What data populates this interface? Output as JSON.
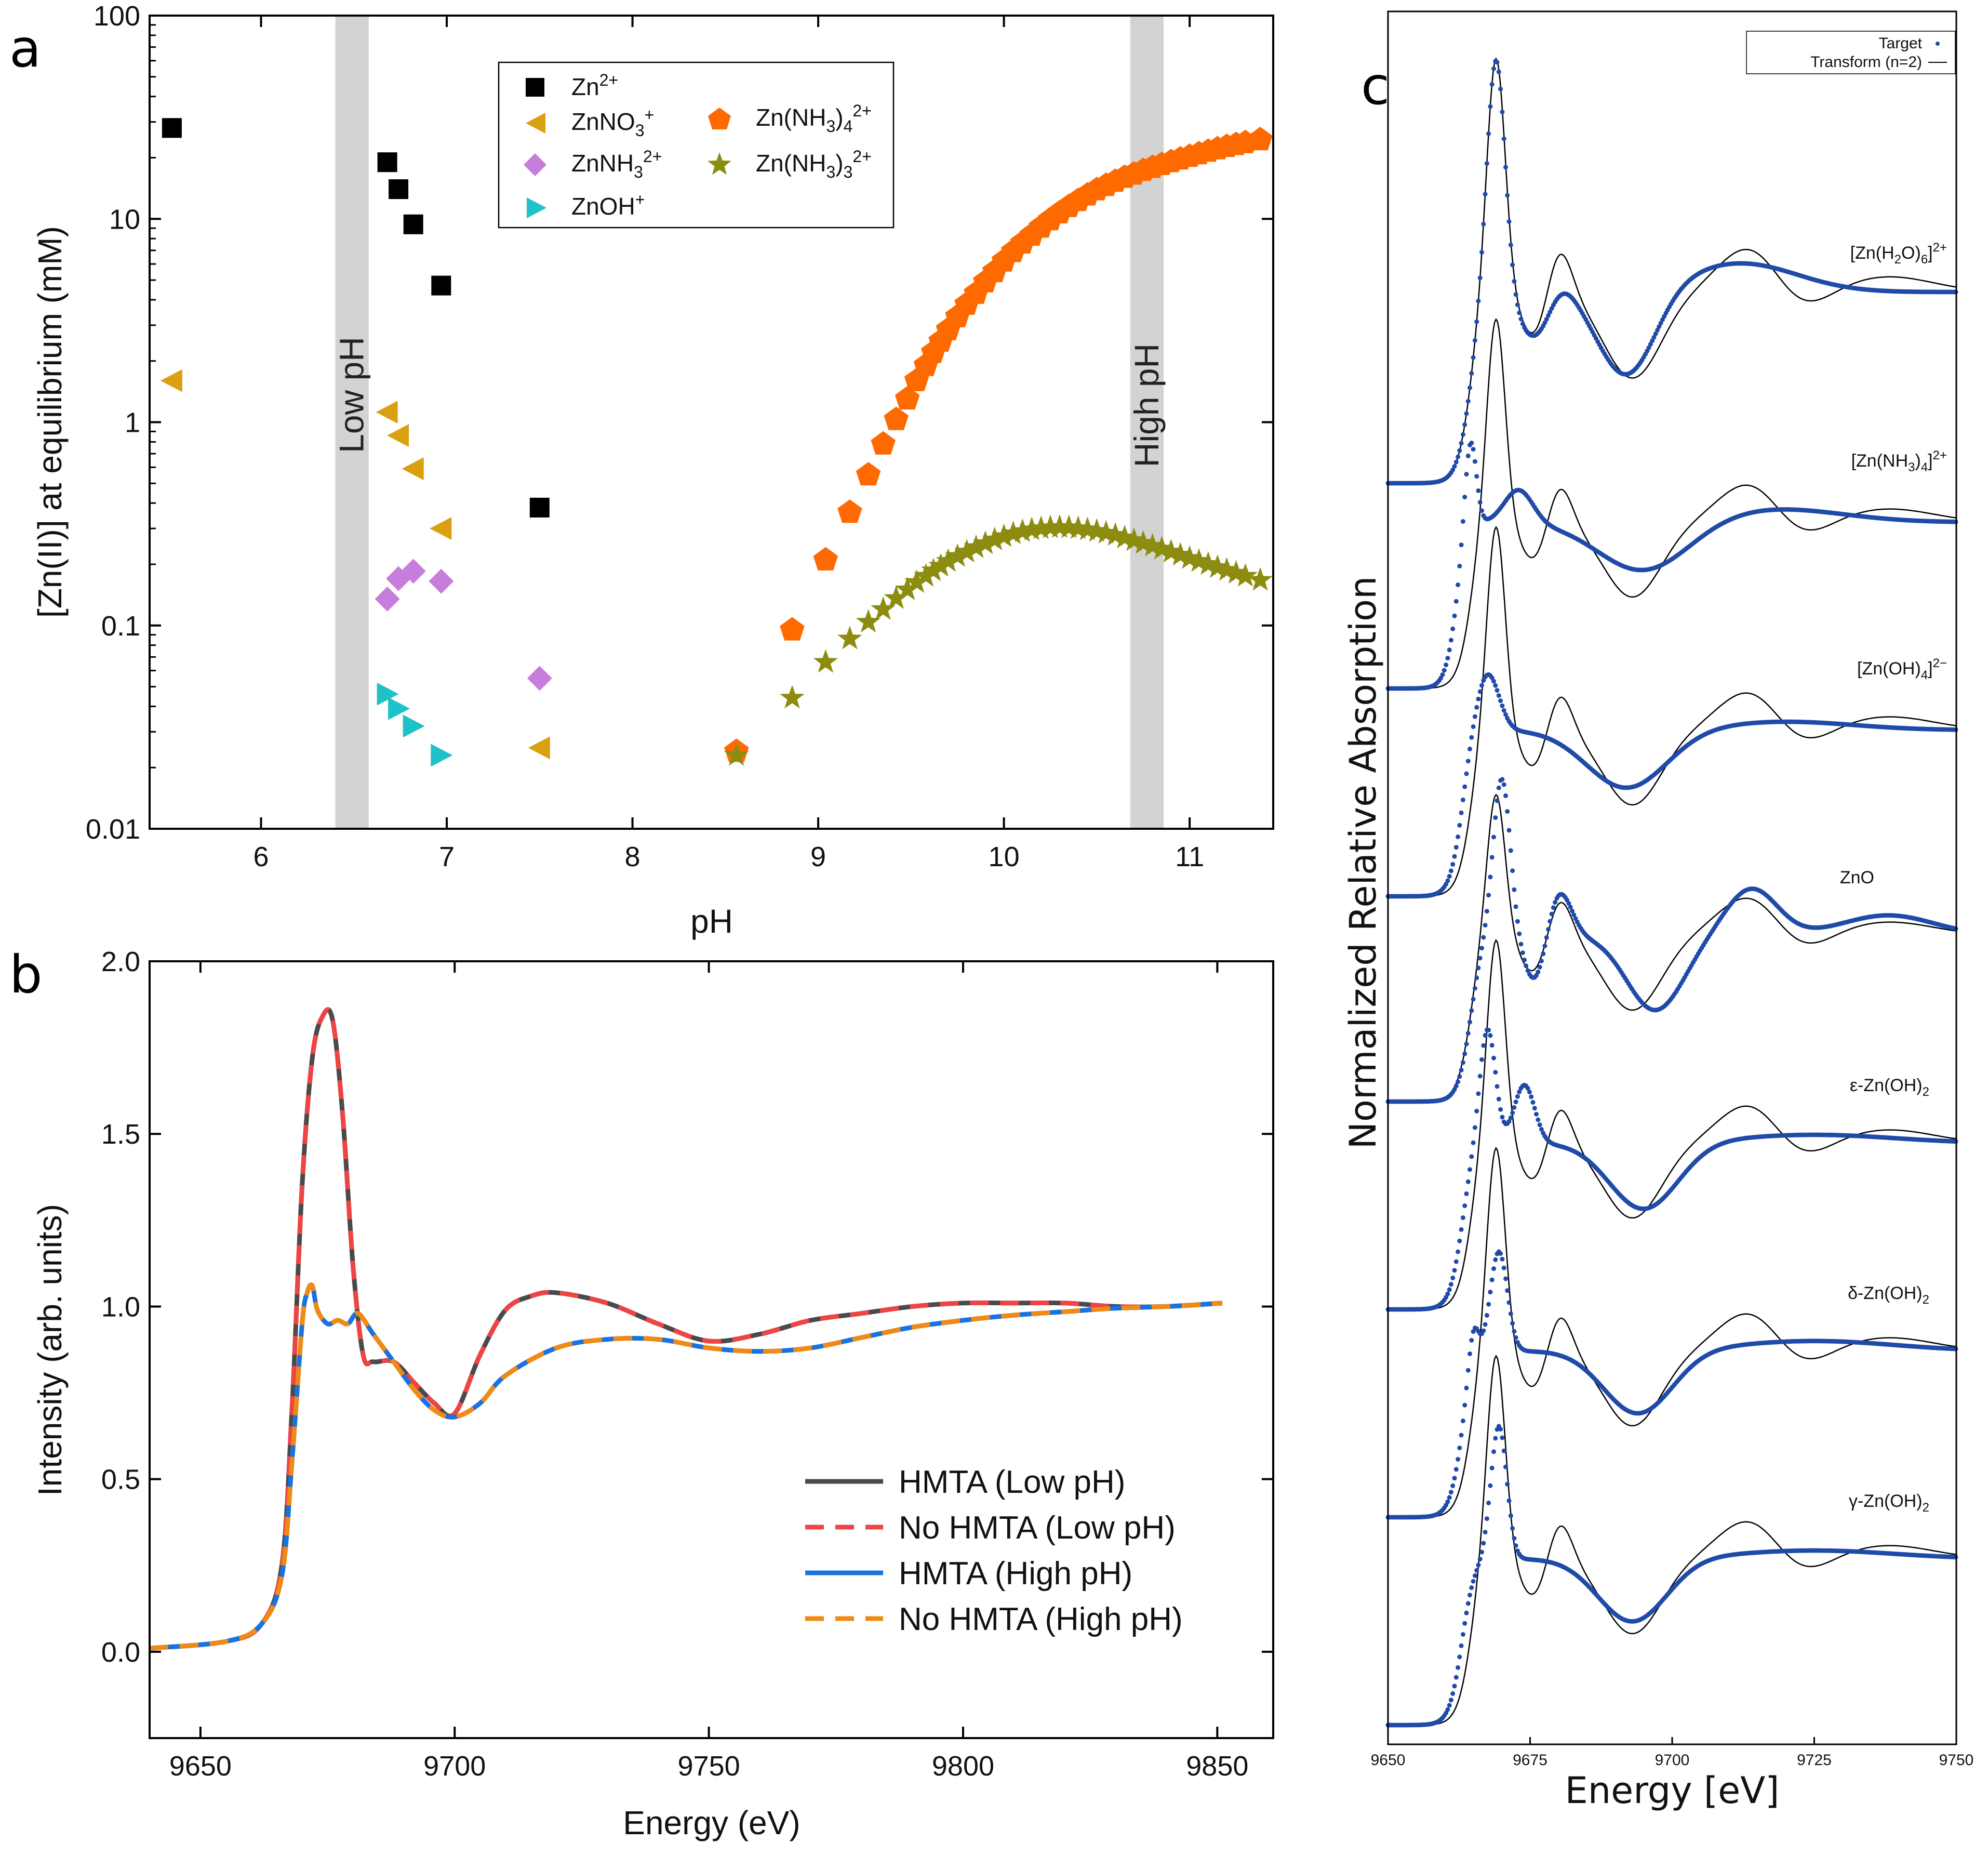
{
  "colors": {
    "zn2": "#000000",
    "znno3": "#d9a00f",
    "znnh3": "#c77ddb",
    "znoh": "#1fc2c9",
    "znnh34": "#ff6a00",
    "znnh33": "#8c8c10",
    "band": "#d3d3d3",
    "hmta_low": "#4a4a4a",
    "nohmta_low": "#ee4444",
    "hmta_high": "#1a72e0",
    "nohmta_high": "#f08a14",
    "target": "#1f4aa8",
    "transform": "#000000"
  },
  "panels": {
    "a": "a",
    "b": "b",
    "c": "c"
  },
  "chart_data": [
    {
      "id": "a",
      "type": "scatter",
      "xlabel": "pH",
      "ylabel": "[Zn(II)] at equilibrium (mM)",
      "xlim": [
        5.4,
        11.45
      ],
      "ylim": [
        0.01,
        100
      ],
      "yscale": "log",
      "xticks": [
        "6",
        "7",
        "8",
        "9",
        "10",
        "11"
      ],
      "yticks": [
        "0.01",
        "0.1",
        "1",
        "10",
        "100"
      ],
      "bands": [
        {
          "label": "Low pH",
          "x0": 6.4,
          "x1": 6.58
        },
        {
          "label": "High pH",
          "x0": 10.68,
          "x1": 10.86
        }
      ],
      "legend": {
        "position": "top-center",
        "col1": [
          "Zn2+",
          "ZnNO3+",
          "ZnNH32+",
          "ZnOH+"
        ],
        "col2": [
          "Zn(NH3)42+",
          "Zn(NH3)32+"
        ]
      },
      "series": [
        {
          "name": "Zn2+",
          "marker": "square",
          "x": [
            5.52,
            6.68,
            6.74,
            6.82,
            6.97,
            7.5
          ],
          "y": [
            28,
            19,
            14,
            9.4,
            4.7,
            0.38
          ]
        },
        {
          "name": "ZnNO3+",
          "marker": "tri-left",
          "x": [
            5.52,
            6.68,
            6.74,
            6.82,
            6.97,
            7.5
          ],
          "y": [
            1.6,
            1.12,
            0.86,
            0.59,
            0.3,
            0.025
          ]
        },
        {
          "name": "ZnNH32+",
          "marker": "diamond",
          "x": [
            6.68,
            6.74,
            6.82,
            6.97,
            7.5
          ],
          "y": [
            0.135,
            0.17,
            0.185,
            0.165,
            0.055
          ]
        },
        {
          "name": "ZnOH+",
          "marker": "tri-right",
          "x": [
            6.68,
            6.74,
            6.82,
            6.97
          ],
          "y": [
            0.046,
            0.039,
            0.032,
            0.023
          ]
        },
        {
          "name": "Zn(NH3)42+",
          "marker": "pentagon",
          "x": [
            8.56,
            8.86,
            9.04,
            9.17,
            9.27,
            9.35,
            9.42,
            9.48,
            9.53,
            9.58,
            9.62,
            9.66,
            9.7,
            9.75,
            9.8,
            9.85,
            9.9,
            9.95,
            10.0,
            10.05,
            10.1,
            10.15,
            10.2,
            10.25,
            10.3,
            10.35,
            10.4,
            10.45,
            10.5,
            10.55,
            10.6,
            10.65,
            10.7,
            10.75,
            10.8,
            10.85,
            10.9,
            10.95,
            11.0,
            11.05,
            11.1,
            11.15,
            11.2,
            11.25,
            11.3,
            11.38
          ],
          "y": [
            0.024,
            0.095,
            0.21,
            0.36,
            0.55,
            0.78,
            1.03,
            1.3,
            1.6,
            1.9,
            2.2,
            2.5,
            2.85,
            3.3,
            3.8,
            4.3,
            4.9,
            5.5,
            6.2,
            6.9,
            7.6,
            8.3,
            9.1,
            9.9,
            10.7,
            11.5,
            12.3,
            13.1,
            13.9,
            14.6,
            15.3,
            16.0,
            16.6,
            17.3,
            17.9,
            18.5,
            19.1,
            19.7,
            20.3,
            20.9,
            21.5,
            22.1,
            22.7,
            23.2,
            23.7,
            24.5
          ]
        },
        {
          "name": "Zn(NH3)32+",
          "marker": "star",
          "x": [
            8.56,
            8.86,
            9.04,
            9.17,
            9.27,
            9.35,
            9.42,
            9.48,
            9.53,
            9.58,
            9.62,
            9.66,
            9.7,
            9.75,
            9.8,
            9.85,
            9.9,
            9.95,
            10.0,
            10.05,
            10.1,
            10.15,
            10.2,
            10.25,
            10.3,
            10.35,
            10.4,
            10.45,
            10.5,
            10.55,
            10.6,
            10.65,
            10.7,
            10.75,
            10.8,
            10.85,
            10.9,
            10.95,
            11.0,
            11.05,
            11.1,
            11.15,
            11.2,
            11.25,
            11.3,
            11.38
          ],
          "y": [
            0.023,
            0.044,
            0.066,
            0.086,
            0.104,
            0.12,
            0.136,
            0.15,
            0.163,
            0.175,
            0.186,
            0.196,
            0.207,
            0.219,
            0.23,
            0.242,
            0.253,
            0.264,
            0.274,
            0.283,
            0.29,
            0.296,
            0.3,
            0.303,
            0.304,
            0.303,
            0.3,
            0.296,
            0.291,
            0.285,
            0.278,
            0.27,
            0.262,
            0.254,
            0.246,
            0.238,
            0.23,
            0.222,
            0.214,
            0.207,
            0.2,
            0.193,
            0.187,
            0.181,
            0.175,
            0.167
          ]
        }
      ]
    },
    {
      "id": "b",
      "type": "line",
      "xlabel": "Energy (eV)",
      "ylabel": "Intensity (arb. units)",
      "xlim": [
        9640,
        9861
      ],
      "ylim": [
        -0.25,
        2.0
      ],
      "xticks": [
        "9650",
        "9700",
        "9750",
        "9800",
        "9850"
      ],
      "yticks": [
        "0.0",
        "0.5",
        "1.0",
        "1.5",
        "2.0"
      ],
      "legend": {
        "position": "bottom-right"
      },
      "series": [
        {
          "name": "HMTA (Low pH)",
          "style": "solid",
          "x": [
            9640,
            9655,
            9662,
            9666,
            9668,
            9670,
            9672,
            9674,
            9676,
            9678,
            9680,
            9682,
            9684,
            9688,
            9692,
            9696,
            9700,
            9705,
            9710,
            9715,
            9720,
            9730,
            9740,
            9750,
            9760,
            9770,
            9780,
            9790,
            9800,
            9810,
            9820,
            9830,
            9840,
            9851
          ],
          "y": [
            0.01,
            0.03,
            0.08,
            0.25,
            0.7,
            1.35,
            1.72,
            1.84,
            1.83,
            1.55,
            1.12,
            0.86,
            0.84,
            0.84,
            0.78,
            0.72,
            0.69,
            0.86,
            0.99,
            1.03,
            1.04,
            1.01,
            0.95,
            0.9,
            0.92,
            0.96,
            0.98,
            1.0,
            1.01,
            1.01,
            1.01,
            1.0,
            1.0,
            1.01
          ]
        },
        {
          "name": "No HMTA (Low pH)",
          "style": "dashed",
          "same_as": "HMTA (Low pH)"
        },
        {
          "name": "HMTA (High pH)",
          "style": "solid",
          "x": [
            9640,
            9655,
            9662,
            9666,
            9668,
            9670,
            9671,
            9672,
            9673,
            9675,
            9677,
            9679,
            9681,
            9684,
            9688,
            9692,
            9696,
            9700,
            9705,
            9710,
            9720,
            9730,
            9740,
            9750,
            9760,
            9770,
            9780,
            9790,
            9800,
            9810,
            9820,
            9830,
            9840,
            9851
          ],
          "y": [
            0.01,
            0.03,
            0.08,
            0.22,
            0.55,
            0.95,
            1.04,
            1.06,
            0.99,
            0.95,
            0.96,
            0.95,
            0.98,
            0.92,
            0.84,
            0.76,
            0.7,
            0.68,
            0.72,
            0.8,
            0.88,
            0.905,
            0.905,
            0.88,
            0.87,
            0.88,
            0.91,
            0.94,
            0.96,
            0.975,
            0.985,
            0.995,
            1.0,
            1.01
          ]
        },
        {
          "name": "No HMTA (High pH)",
          "style": "dashed",
          "same_as": "HMTA (High pH)"
        }
      ]
    },
    {
      "id": "c",
      "type": "line",
      "xlabel": "Energy [eV]",
      "ylabel": "Normalized Relative Absorption",
      "xlim": [
        9650,
        9750
      ],
      "xticks": [
        "9650",
        "9675",
        "9700",
        "9725",
        "9750"
      ],
      "legend": {
        "position": "top-right",
        "entries": [
          "Target",
          "Transform (n=2)"
        ]
      },
      "references": [
        {
          "label": "[Zn(H2O)6]2+"
        },
        {
          "label": "[Zn(NH3)4]2+"
        },
        {
          "label": "[Zn(OH)4]2−"
        },
        {
          "label": "ZnO"
        },
        {
          "label": "ε-Zn(OH)2"
        },
        {
          "label": "δ-Zn(OH)2"
        },
        {
          "label": "γ-Zn(OH)2"
        }
      ]
    }
  ],
  "legend_a": {
    "zn2_base": "Zn",
    "zn2_sup": "2+",
    "znno3_base": "ZnNO",
    "znno3_sub": "3",
    "znno3_sup": "+",
    "znnh3_base": "ZnNH",
    "znnh3_sub": "3",
    "znnh3_sup": "2+",
    "znoh_base": "ZnOH",
    "znoh_sup": "+",
    "znnh34_a": "Zn(NH",
    "znnh34_sub": "3",
    "znnh34_b": ")",
    "znnh34_sub2": "4",
    "znnh34_sup": "2+",
    "znnh33_a": "Zn(NH",
    "znnh33_sub": "3",
    "znnh33_b": ")",
    "znnh33_sub2": "3",
    "znnh33_sup": "2+"
  },
  "legend_b": [
    "HMTA (Low pH)",
    "No HMTA (Low pH)",
    "HMTA (High pH)",
    "No HMTA (High pH)"
  ],
  "legend_c": [
    "Target",
    "Transform (n=2)"
  ],
  "labels_c": {
    "h2o_a": "[Zn(H",
    "h2o_sub": "2",
    "h2o_b": "O)",
    "h2o_sub2": "6",
    "h2o_c": "]",
    "h2o_sup": "2+",
    "nh3_a": "[Zn(NH",
    "nh3_sub": "3",
    "nh3_b": ")",
    "nh3_sub2": "4",
    "nh3_c": "]",
    "nh3_sup": "2+",
    "oh_a": "[Zn(OH)",
    "oh_sub": "4",
    "oh_b": "]",
    "oh_sup": "2−",
    "zno": "ZnO",
    "eps_a": "ε-Zn(OH)",
    "eps_sub": "2",
    "del_a": "δ-Zn(OH)",
    "del_sub": "2",
    "gam_a": "γ-Zn(OH)",
    "gam_sub": "2"
  }
}
